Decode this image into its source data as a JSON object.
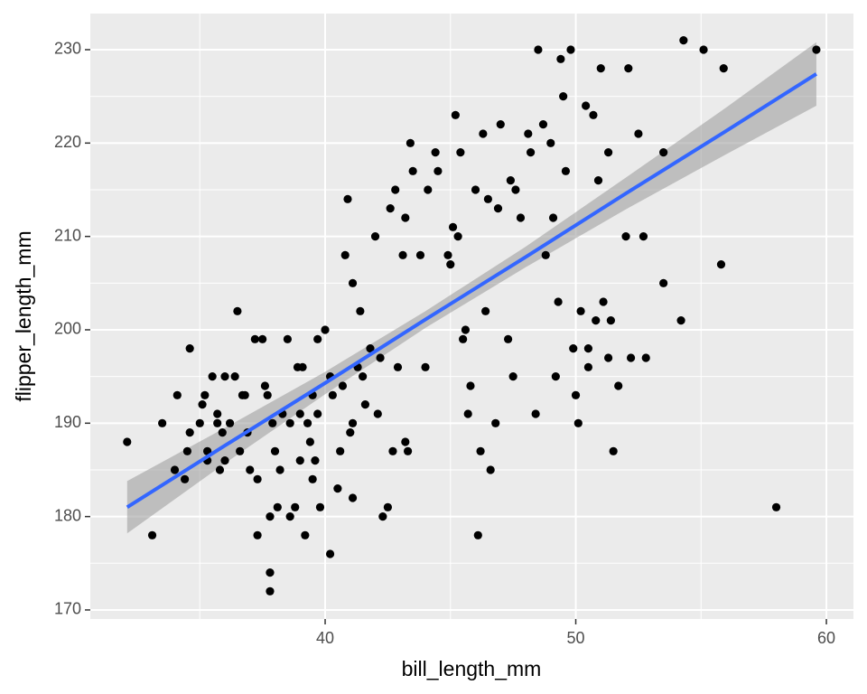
{
  "chart_data": {
    "type": "scatter",
    "x_label": "bill_length_mm",
    "y_label": "flipper_length_mm",
    "xlim": [
      30.63,
      61.08
    ],
    "ylim": [
      169.03,
      233.87
    ],
    "xticks": [
      40,
      50,
      60
    ],
    "yticks": [
      170,
      180,
      190,
      200,
      210,
      220,
      230
    ],
    "xminor": [
      35,
      45,
      55
    ],
    "yminor": [
      175,
      185,
      195,
      205,
      215,
      225
    ],
    "grid": true,
    "color": "#000000",
    "x": [
      32.1,
      33.1,
      33.5,
      34.0,
      34.1,
      34.4,
      34.5,
      34.6,
      34.6,
      35.0,
      35.1,
      35.2,
      35.3,
      35.3,
      35.5,
      35.7,
      35.7,
      35.8,
      35.9,
      36.0,
      36.0,
      36.2,
      36.4,
      36.5,
      36.6,
      36.7,
      36.8,
      36.9,
      37.0,
      37.2,
      37.3,
      37.3,
      37.5,
      37.6,
      37.7,
      37.8,
      37.8,
      37.8,
      37.9,
      38.0,
      38.1,
      38.2,
      38.3,
      38.5,
      38.6,
      38.6,
      38.8,
      39.0,
      39.0,
      39.1,
      39.2,
      39.3,
      39.4,
      39.5,
      39.6,
      39.7,
      39.8,
      40.0,
      40.2,
      40.3,
      40.5,
      40.6,
      40.8,
      40.9,
      41.0,
      41.1,
      41.1,
      41.3,
      41.4,
      41.5,
      41.6,
      41.8,
      42.0,
      42.2,
      42.3,
      42.5,
      42.6,
      42.7,
      42.8,
      43.1,
      43.2,
      43.3,
      43.4,
      43.5,
      43.8,
      44.0,
      44.4,
      44.5,
      44.9,
      45.0,
      45.2,
      45.3,
      45.5,
      45.7,
      45.8,
      46.0,
      46.1,
      46.2,
      46.3,
      46.5,
      46.6,
      46.9,
      47.0,
      47.3,
      47.5,
      47.6,
      47.8,
      48.1,
      48.4,
      48.5,
      48.7,
      48.8,
      49.0,
      49.2,
      49.3,
      49.4,
      49.5,
      49.8,
      50.0,
      50.1,
      50.2,
      50.4,
      50.5,
      50.7,
      50.8,
      51.0,
      51.1,
      51.3,
      51.4,
      51.5,
      51.7,
      52.0,
      52.1,
      52.2,
      52.5,
      52.8,
      53.5,
      53.5,
      54.2,
      54.3,
      55.1,
      55.8,
      55.9,
      58.0,
      59.6,
      38.9,
      39.5,
      39.7,
      40.2,
      40.7,
      41.1,
      42.1,
      42.9,
      43.2,
      44.1,
      45.1,
      45.4,
      45.6,
      46.4,
      46.8,
      47.4,
      48.2,
      49.1,
      49.6,
      49.9,
      50.5,
      50.9,
      51.3,
      52.7
    ],
    "values": [
      188,
      178,
      190,
      185,
      193,
      184,
      187,
      198,
      189,
      190,
      192,
      193,
      187,
      186,
      195,
      191,
      190,
      185,
      189,
      195,
      186,
      190,
      195,
      202,
      187,
      193,
      193,
      189,
      185,
      199,
      178,
      184,
      199,
      194,
      193,
      174,
      172,
      180,
      190,
      187,
      181,
      185,
      191,
      199,
      190,
      180,
      181,
      186,
      191,
      196,
      178,
      190,
      188,
      193,
      186,
      191,
      181,
      200,
      176,
      193,
      183,
      187,
      208,
      214,
      189,
      190,
      205,
      196,
      202,
      195,
      192,
      198,
      210,
      197,
      180,
      181,
      213,
      187,
      215,
      208,
      188,
      187,
      220,
      217,
      208,
      196,
      219,
      217,
      208,
      207,
      223,
      210,
      199,
      191,
      194,
      215,
      178,
      187,
      221,
      214,
      185,
      213,
      222,
      199,
      195,
      215,
      212,
      221,
      191,
      230,
      222,
      208,
      220,
      195,
      203,
      229,
      225,
      230,
      193,
      190,
      202,
      224,
      196,
      223,
      201,
      228,
      203,
      197,
      201,
      187,
      194,
      210,
      228,
      197,
      221,
      197,
      219,
      205,
      201,
      231,
      230,
      207,
      228,
      181,
      230,
      196,
      184,
      199,
      195,
      194,
      182,
      191,
      196,
      212,
      215,
      211,
      219,
      200,
      202,
      190,
      216,
      219,
      212,
      217,
      198,
      198,
      216,
      219,
      210
    ],
    "smooth": {
      "color": "#3366ff",
      "band_color": "#999999",
      "x": [
        32.1,
        36,
        40,
        44,
        48,
        52,
        56,
        59.6
      ],
      "y": [
        181,
        187.6,
        194.3,
        201.1,
        207.8,
        214.6,
        221.3,
        227.4
      ],
      "ymin": [
        178.2,
        185.7,
        193.1,
        200.2,
        206.7,
        212.9,
        218.8,
        224
      ],
      "ymax": [
        183.8,
        189.5,
        195.5,
        202,
        208.9,
        216.3,
        223.8,
        230.8
      ]
    }
  }
}
